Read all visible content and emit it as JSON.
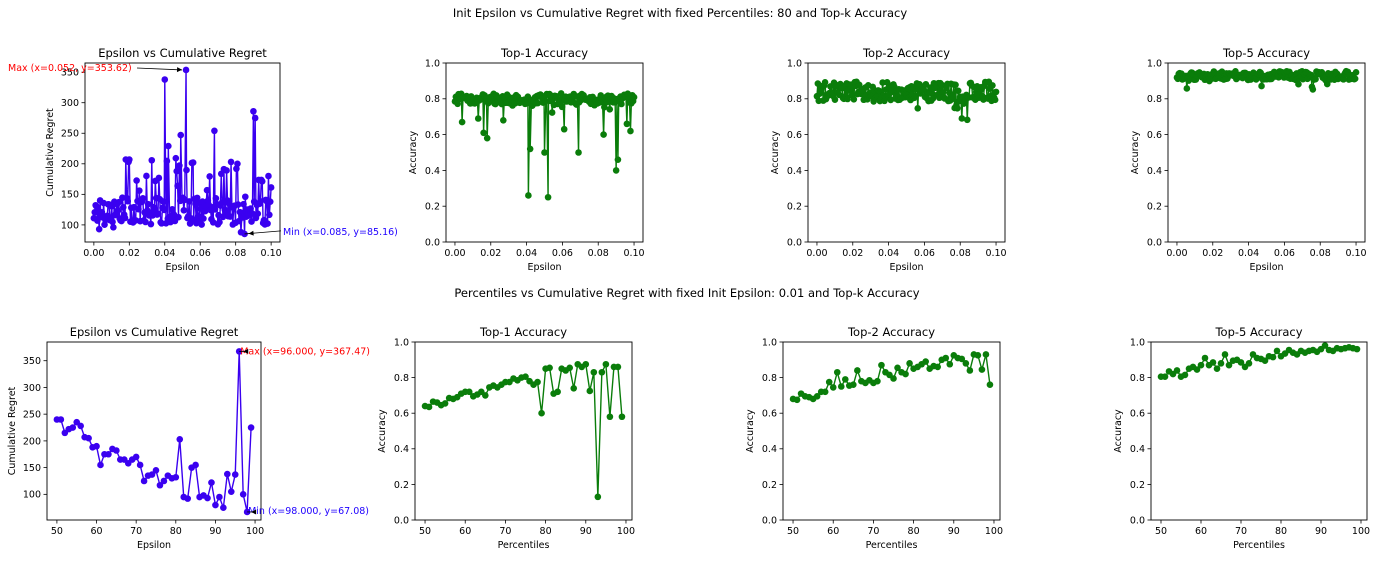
{
  "figure": {
    "row1_title": "Init Epsilon vs Cumulative Regret with fixed Percentiles: 80 and Top-k Accuracy",
    "row2_title": "Percentiles vs Cumulative Regret with fixed Init Epsilon: 0.01 and Top-k Accuracy"
  },
  "colors": {
    "regret": "#3a00f0",
    "accuracy": "#0a7d0a",
    "max_annot": "#ff0000",
    "min_annot": "#1f00ff"
  },
  "chart_data": [
    {
      "type": "line",
      "title": "Epsilon vs Cumulative Regret",
      "xlabel": "Epsilon",
      "ylabel": "Cumulative Regret",
      "xlim": [
        -0.005,
        0.105
      ],
      "ylim": [
        72,
        365
      ],
      "xticks": [
        0.0,
        0.02,
        0.04,
        0.06,
        0.08,
        0.1
      ],
      "xtick_labels": [
        "0.00",
        "0.02",
        "0.04",
        "0.06",
        "0.08",
        "0.10"
      ],
      "yticks": [
        100,
        150,
        200,
        250,
        300,
        350
      ],
      "series_color": "regret",
      "gen": {
        "kind": "regret1",
        "n": 200,
        "xmin": 0.0,
        "xmax": 0.1
      },
      "annotations": [
        {
          "text": "Max (x=0.052, y=353.62)",
          "x": 0.052,
          "y": 353.62,
          "tx": -0.05,
          "ty": 356,
          "color": "max_annot",
          "anchor": "start"
        },
        {
          "text": "Min (x=0.085, y=85.16)",
          "x": 0.085,
          "y": 85.16,
          "tx": 0.105,
          "ty": 87,
          "color": "min_annot",
          "anchor": "start"
        }
      ]
    },
    {
      "type": "line",
      "title": "Top-1 Accuracy",
      "xlabel": "Epsilon",
      "ylabel": "Accuracy",
      "xlim": [
        -0.005,
        0.105
      ],
      "ylim": [
        0.0,
        1.0
      ],
      "xticks": [
        0.0,
        0.02,
        0.04,
        0.06,
        0.08,
        0.1
      ],
      "xtick_labels": [
        "0.00",
        "0.02",
        "0.04",
        "0.06",
        "0.08",
        "0.10"
      ],
      "yticks": [
        0.0,
        0.2,
        0.4,
        0.6,
        0.8,
        1.0
      ],
      "ytick_labels": [
        "0.0",
        "0.2",
        "0.4",
        "0.6",
        "0.8",
        "1.0"
      ],
      "series_color": "accuracy",
      "gen": {
        "kind": "acc_eps",
        "n": 200,
        "base": 0.8,
        "amp": 0.03,
        "dips": [
          [
            0.041,
            0.26
          ],
          [
            0.052,
            0.25
          ],
          [
            0.042,
            0.52
          ],
          [
            0.05,
            0.5
          ],
          [
            0.069,
            0.5
          ],
          [
            0.09,
            0.4
          ],
          [
            0.091,
            0.46
          ],
          [
            0.004,
            0.67
          ],
          [
            0.016,
            0.61
          ],
          [
            0.018,
            0.58
          ],
          [
            0.027,
            0.68
          ],
          [
            0.083,
            0.6
          ],
          [
            0.096,
            0.66
          ],
          [
            0.098,
            0.62
          ],
          [
            0.013,
            0.69
          ],
          [
            0.061,
            0.63
          ]
        ]
      }
    },
    {
      "type": "line",
      "title": "Top-2 Accuracy",
      "xlabel": "Epsilon",
      "ylabel": "Accuracy",
      "xlim": [
        -0.005,
        0.105
      ],
      "ylim": [
        0.0,
        1.0
      ],
      "xticks": [
        0.0,
        0.02,
        0.04,
        0.06,
        0.08,
        0.1
      ],
      "xtick_labels": [
        "0.00",
        "0.02",
        "0.04",
        "0.06",
        "0.08",
        "0.10"
      ],
      "yticks": [
        0.0,
        0.2,
        0.4,
        0.6,
        0.8,
        1.0
      ],
      "ytick_labels": [
        "0.0",
        "0.2",
        "0.4",
        "0.6",
        "0.8",
        "1.0"
      ],
      "series_color": "accuracy",
      "gen": {
        "kind": "acc_eps",
        "n": 200,
        "base": 0.84,
        "amp": 0.055,
        "dips": []
      }
    },
    {
      "type": "line",
      "title": "Top-5 Accuracy",
      "xlabel": "Epsilon",
      "ylabel": "Accuracy",
      "xlim": [
        -0.005,
        0.105
      ],
      "ylim": [
        0.0,
        1.0
      ],
      "xticks": [
        0.0,
        0.02,
        0.04,
        0.06,
        0.08,
        0.1
      ],
      "xtick_labels": [
        "0.00",
        "0.02",
        "0.04",
        "0.06",
        "0.08",
        "0.10"
      ],
      "yticks": [
        0.0,
        0.2,
        0.4,
        0.6,
        0.8,
        1.0
      ],
      "ytick_labels": [
        "0.0",
        "0.2",
        "0.4",
        "0.6",
        "0.8",
        "1.0"
      ],
      "series_color": "accuracy",
      "gen": {
        "kind": "acc_eps",
        "n": 200,
        "base": 0.93,
        "amp": 0.025,
        "dips": []
      }
    },
    {
      "type": "line",
      "title": "Epsilon vs Cumulative Regret",
      "xlabel": "Epsilon",
      "ylabel": "Cumulative Regret",
      "xlim": [
        47.5,
        101.5
      ],
      "ylim": [
        52,
        385
      ],
      "xticks": [
        50,
        60,
        70,
        80,
        90,
        100
      ],
      "yticks": [
        100,
        150,
        200,
        250,
        300,
        350
      ],
      "series_color": "regret",
      "x": [
        50,
        51,
        52,
        53,
        54,
        55,
        56,
        57,
        58,
        59,
        60,
        61,
        62,
        63,
        64,
        65,
        66,
        67,
        68,
        69,
        70,
        71,
        72,
        73,
        74,
        75,
        76,
        77,
        78,
        79,
        80,
        81,
        82,
        83,
        84,
        85,
        86,
        87,
        88,
        89,
        90,
        91,
        92,
        93,
        94,
        95,
        96,
        97,
        98,
        99
      ],
      "values": [
        240,
        240,
        215,
        222,
        225,
        235,
        228,
        207,
        205,
        188,
        190,
        155,
        175,
        175,
        185,
        182,
        165,
        165,
        158,
        165,
        170,
        155,
        125,
        135,
        137,
        145,
        117,
        125,
        135,
        130,
        132,
        203,
        95,
        92,
        150,
        155,
        95,
        98,
        93,
        122,
        80,
        95,
        75,
        138,
        105,
        137,
        367.47,
        100,
        67.08,
        225
      ],
      "annotations": [
        {
          "text": "Max (x=96.000, y=367.47)",
          "x": 96,
          "y": 367.47,
          "tx": 101.5,
          "ty": 367.47,
          "color": "max_annot",
          "anchor": "end"
        },
        {
          "text": "Min (x=98.000, y=67.08)",
          "x": 98,
          "y": 67.08,
          "tx": 101.5,
          "ty": 69,
          "color": "min_annot",
          "anchor": "end"
        }
      ]
    },
    {
      "type": "line",
      "title": "Top-1 Accuracy",
      "xlabel": "Percentiles",
      "ylabel": "Accuracy",
      "xlim": [
        47.5,
        101.5
      ],
      "ylim": [
        0.0,
        1.0
      ],
      "xticks": [
        50,
        60,
        70,
        80,
        90,
        100
      ],
      "yticks": [
        0.0,
        0.2,
        0.4,
        0.6,
        0.8,
        1.0
      ],
      "ytick_labels": [
        "0.0",
        "0.2",
        "0.4",
        "0.6",
        "0.8",
        "1.0"
      ],
      "series_color": "accuracy",
      "x": [
        50,
        51,
        52,
        53,
        54,
        55,
        56,
        57,
        58,
        59,
        60,
        61,
        62,
        63,
        64,
        65,
        66,
        67,
        68,
        69,
        70,
        71,
        72,
        73,
        74,
        75,
        76,
        77,
        78,
        79,
        80,
        81,
        82,
        83,
        84,
        85,
        86,
        87,
        88,
        89,
        90,
        91,
        92,
        93,
        94,
        95,
        96,
        97,
        98,
        99
      ],
      "values": [
        0.64,
        0.635,
        0.665,
        0.66,
        0.645,
        0.655,
        0.685,
        0.68,
        0.69,
        0.71,
        0.72,
        0.72,
        0.695,
        0.705,
        0.72,
        0.7,
        0.745,
        0.755,
        0.745,
        0.76,
        0.775,
        0.775,
        0.795,
        0.785,
        0.8,
        0.805,
        0.78,
        0.76,
        0.775,
        0.6,
        0.85,
        0.855,
        0.71,
        0.72,
        0.85,
        0.84,
        0.855,
        0.74,
        0.875,
        0.86,
        0.875,
        0.725,
        0.83,
        0.13,
        0.83,
        0.875,
        0.58,
        0.86,
        0.86,
        0.58
      ]
    },
    {
      "type": "line",
      "title": "Top-2 Accuracy",
      "xlabel": "Percentiles",
      "ylabel": "Accuracy",
      "xlim": [
        47.5,
        101.5
      ],
      "ylim": [
        0.0,
        1.0
      ],
      "xticks": [
        50,
        60,
        70,
        80,
        90,
        100
      ],
      "yticks": [
        0.0,
        0.2,
        0.4,
        0.6,
        0.8,
        1.0
      ],
      "ytick_labels": [
        "0.0",
        "0.2",
        "0.4",
        "0.6",
        "0.8",
        "1.0"
      ],
      "series_color": "accuracy",
      "x": [
        50,
        51,
        52,
        53,
        54,
        55,
        56,
        57,
        58,
        59,
        60,
        61,
        62,
        63,
        64,
        65,
        66,
        67,
        68,
        69,
        70,
        71,
        72,
        73,
        74,
        75,
        76,
        77,
        78,
        79,
        80,
        81,
        82,
        83,
        84,
        85,
        86,
        87,
        88,
        89,
        90,
        91,
        92,
        93,
        94,
        95,
        96,
        97,
        98,
        99
      ],
      "values": [
        0.68,
        0.675,
        0.71,
        0.695,
        0.69,
        0.68,
        0.695,
        0.72,
        0.72,
        0.775,
        0.745,
        0.83,
        0.75,
        0.79,
        0.755,
        0.76,
        0.84,
        0.78,
        0.77,
        0.785,
        0.77,
        0.78,
        0.87,
        0.83,
        0.815,
        0.795,
        0.855,
        0.83,
        0.82,
        0.88,
        0.85,
        0.86,
        0.875,
        0.89,
        0.85,
        0.865,
        0.86,
        0.9,
        0.91,
        0.875,
        0.925,
        0.91,
        0.905,
        0.88,
        0.84,
        0.93,
        0.925,
        0.845,
        0.93,
        0.76
      ]
    },
    {
      "type": "line",
      "title": "Top-5 Accuracy",
      "xlabel": "Percentiles",
      "ylabel": "Accuracy",
      "xlim": [
        47.5,
        101.5
      ],
      "ylim": [
        0.0,
        1.0
      ],
      "xticks": [
        50,
        60,
        70,
        80,
        90,
        100
      ],
      "yticks": [
        0.0,
        0.2,
        0.4,
        0.6,
        0.8,
        1.0
      ],
      "ytick_labels": [
        "0.0",
        "0.2",
        "0.4",
        "0.6",
        "0.8",
        "1.0"
      ],
      "series_color": "accuracy",
      "x": [
        50,
        51,
        52,
        53,
        54,
        55,
        56,
        57,
        58,
        59,
        60,
        61,
        62,
        63,
        64,
        65,
        66,
        67,
        68,
        69,
        70,
        71,
        72,
        73,
        74,
        75,
        76,
        77,
        78,
        79,
        80,
        81,
        82,
        83,
        84,
        85,
        86,
        87,
        88,
        89,
        90,
        91,
        92,
        93,
        94,
        95,
        96,
        97,
        98,
        99
      ],
      "values": [
        0.805,
        0.805,
        0.835,
        0.82,
        0.84,
        0.805,
        0.815,
        0.85,
        0.86,
        0.845,
        0.87,
        0.91,
        0.87,
        0.885,
        0.85,
        0.88,
        0.93,
        0.87,
        0.895,
        0.9,
        0.885,
        0.86,
        0.88,
        0.93,
        0.91,
        0.905,
        0.895,
        0.92,
        0.915,
        0.95,
        0.92,
        0.935,
        0.955,
        0.94,
        0.93,
        0.95,
        0.94,
        0.95,
        0.955,
        0.945,
        0.96,
        0.98,
        0.955,
        0.95,
        0.965,
        0.96,
        0.965,
        0.97,
        0.965,
        0.96
      ]
    }
  ]
}
